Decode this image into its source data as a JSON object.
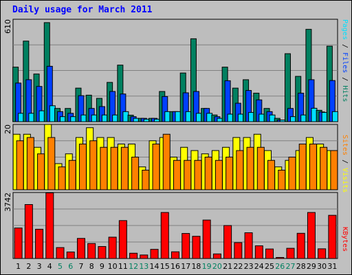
{
  "title": "Daily usage for March 2011",
  "colors": {
    "background": "#c0c0c0",
    "panel": "#bdbdbd",
    "grid": "#808080",
    "weekday_label": "#000000",
    "weekend_label": "#008060",
    "pages": "#00e0ff",
    "files": "#0040ff",
    "hits": "#008060",
    "visits": "#ffff00",
    "sites": "#ff8000",
    "kbytes": "#ff0000"
  },
  "chart_data": [
    {
      "type": "bar",
      "panel": "hits-files-pages",
      "ymax_label": "610",
      "ylim": [
        0,
        610
      ],
      "categories": [
        "1",
        "2",
        "3",
        "4",
        "5",
        "6",
        "7",
        "8",
        "9",
        "10",
        "11",
        "12",
        "13",
        "14",
        "15",
        "16",
        "17",
        "18",
        "19",
        "20",
        "21",
        "22",
        "23",
        "24",
        "25",
        "26",
        "27",
        "28",
        "29",
        "30",
        "31"
      ],
      "weekend": [
        5,
        6,
        12,
        13,
        19,
        20,
        26,
        27
      ],
      "legend": [
        "Pages",
        "Files",
        "Hits"
      ],
      "series": [
        {
          "name": "Hits",
          "color": "#008060",
          "values": [
            325,
            480,
            284,
            590,
            79,
            79,
            200,
            158,
            139,
            234,
            337,
            39,
            20,
            20,
            180,
            60,
            290,
            494,
            79,
            40,
            325,
            200,
            250,
            170,
            79,
            20,
            405,
            270,
            550,
            68,
            450
          ]
        },
        {
          "name": "Files",
          "color": "#0040ff",
          "values": [
            230,
            250,
            210,
            330,
            60,
            50,
            155,
            79,
            90,
            180,
            165,
            30,
            20,
            20,
            150,
            60,
            172,
            180,
            79,
            30,
            244,
            110,
            186,
            130,
            60,
            10,
            79,
            170,
            250,
            58,
            245
          ]
        },
        {
          "name": "Pages",
          "color": "#00e0ff",
          "values": [
            50,
            50,
            65,
            95,
            30,
            30,
            40,
            40,
            40,
            40,
            60,
            20,
            15,
            15,
            60,
            60,
            60,
            50,
            50,
            20,
            45,
            45,
            55,
            45,
            40,
            10,
            30,
            40,
            80,
            55,
            60
          ]
        }
      ]
    },
    {
      "type": "bar",
      "panel": "visits-sites",
      "ymax_label": "20",
      "ylim": [
        0,
        20
      ],
      "categories": [
        "1",
        "2",
        "3",
        "4",
        "5",
        "6",
        "7",
        "8",
        "9",
        "10",
        "11",
        "12",
        "13",
        "14",
        "15",
        "16",
        "17",
        "18",
        "19",
        "20",
        "21",
        "22",
        "23",
        "24",
        "25",
        "26",
        "27",
        "28",
        "29",
        "30",
        "31"
      ],
      "legend": [
        "Sites",
        "Visits"
      ],
      "series": [
        {
          "name": "Visits",
          "color": "#ffff00",
          "values": [
            17,
            17,
            13,
            20,
            8,
            11,
            16,
            19,
            16,
            16,
            14,
            14,
            7,
            15,
            16,
            10,
            13,
            12,
            11,
            12,
            13,
            16,
            16,
            17,
            12,
            7,
            9,
            12,
            16,
            14,
            12
          ]
        },
        {
          "name": "Sites",
          "color": "#ff8000",
          "values": [
            15,
            16,
            11,
            16,
            7,
            9,
            14,
            15,
            13,
            13,
            13,
            10,
            6,
            14,
            17,
            9,
            9,
            9,
            10,
            9,
            10,
            12,
            13,
            13,
            9,
            6,
            10,
            14,
            14,
            13,
            12
          ]
        }
      ]
    },
    {
      "type": "bar",
      "panel": "kbytes",
      "ymax_label": "3742",
      "ylim": [
        0,
        3742
      ],
      "categories": [
        "1",
        "2",
        "3",
        "4",
        "5",
        "6",
        "7",
        "8",
        "9",
        "10",
        "11",
        "12",
        "13",
        "14",
        "15",
        "16",
        "17",
        "18",
        "19",
        "20",
        "21",
        "22",
        "23",
        "24",
        "25",
        "26",
        "27",
        "28",
        "29",
        "30",
        "31"
      ],
      "legend": [
        "KBytes"
      ],
      "series": [
        {
          "name": "KBytes",
          "color": "#ff0000",
          "values": [
            1730,
            3060,
            1660,
            3720,
            620,
            370,
            1140,
            850,
            680,
            1210,
            2150,
            300,
            200,
            520,
            2610,
            380,
            1420,
            1260,
            2180,
            260,
            1870,
            900,
            1460,
            720,
            540,
            60,
            580,
            1430,
            2610,
            550,
            2450
          ]
        }
      ]
    }
  ]
}
